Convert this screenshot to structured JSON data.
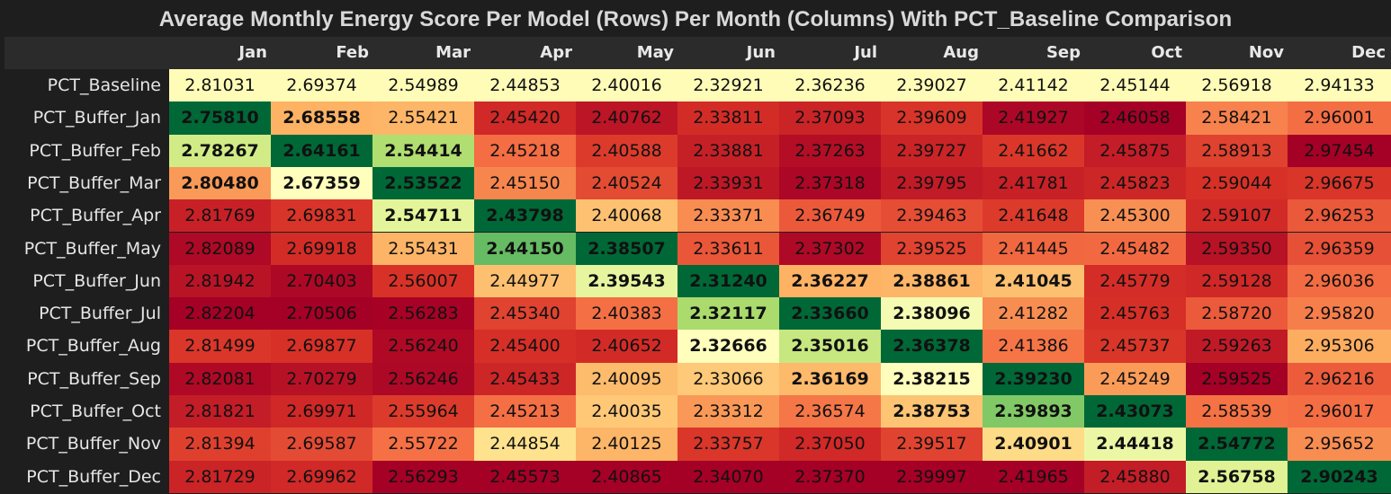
{
  "chart_data": {
    "type": "heatmap",
    "title": "Average Monthly Energy Score Per Model (Rows) Per Month (Columns) With PCT_Baseline Comparison",
    "columns": [
      "Jan",
      "Feb",
      "Mar",
      "Apr",
      "May",
      "Jun",
      "Jul",
      "Aug",
      "Sep",
      "Oct",
      "Nov",
      "Dec"
    ],
    "rows": [
      "PCT_Baseline",
      "PCT_Buffer_Jan",
      "PCT_Buffer_Feb",
      "PCT_Buffer_Mar",
      "PCT_Buffer_Apr",
      "PCT_Buffer_May",
      "PCT_Buffer_Jun",
      "PCT_Buffer_Jul",
      "PCT_Buffer_Aug",
      "PCT_Buffer_Sep",
      "PCT_Buffer_Oct",
      "PCT_Buffer_Nov",
      "PCT_Buffer_Dec"
    ],
    "values": [
      [
        "2.81031",
        "2.69374",
        "2.54989",
        "2.44853",
        "2.40016",
        "2.32921",
        "2.36236",
        "2.39027",
        "2.41142",
        "2.45144",
        "2.56918",
        "2.94133"
      ],
      [
        "2.75810",
        "2.68558",
        "2.55421",
        "2.45420",
        "2.40762",
        "2.33811",
        "2.37093",
        "2.39609",
        "2.41927",
        "2.46058",
        "2.58421",
        "2.96001"
      ],
      [
        "2.78267",
        "2.64161",
        "2.54414",
        "2.45218",
        "2.40588",
        "2.33881",
        "2.37263",
        "2.39727",
        "2.41662",
        "2.45875",
        "2.58913",
        "2.97454"
      ],
      [
        "2.80480",
        "2.67359",
        "2.53522",
        "2.45150",
        "2.40524",
        "2.33931",
        "2.37318",
        "2.39795",
        "2.41781",
        "2.45823",
        "2.59044",
        "2.96675"
      ],
      [
        "2.81769",
        "2.69831",
        "2.54711",
        "2.43798",
        "2.40068",
        "2.33371",
        "2.36749",
        "2.39463",
        "2.41648",
        "2.45300",
        "2.59107",
        "2.96253"
      ],
      [
        "2.82089",
        "2.69918",
        "2.55431",
        "2.44150",
        "2.38507",
        "2.33611",
        "2.37302",
        "2.39525",
        "2.41445",
        "2.45482",
        "2.59350",
        "2.96359"
      ],
      [
        "2.81942",
        "2.70403",
        "2.56007",
        "2.44977",
        "2.39543",
        "2.31240",
        "2.36227",
        "2.38861",
        "2.41045",
        "2.45779",
        "2.59128",
        "2.96036"
      ],
      [
        "2.82204",
        "2.70506",
        "2.56283",
        "2.45340",
        "2.40383",
        "2.32117",
        "2.33660",
        "2.38096",
        "2.41282",
        "2.45763",
        "2.58720",
        "2.95820"
      ],
      [
        "2.81499",
        "2.69877",
        "2.56240",
        "2.45400",
        "2.40652",
        "2.32666",
        "2.35016",
        "2.36378",
        "2.41386",
        "2.45737",
        "2.59263",
        "2.95306"
      ],
      [
        "2.82081",
        "2.70279",
        "2.56246",
        "2.45433",
        "2.40095",
        "2.33066",
        "2.36169",
        "2.38215",
        "2.39230",
        "2.45249",
        "2.59525",
        "2.96216"
      ],
      [
        "2.81821",
        "2.69971",
        "2.55964",
        "2.45213",
        "2.40035",
        "2.33312",
        "2.36574",
        "2.38753",
        "2.39893",
        "2.43073",
        "2.58539",
        "2.96017"
      ],
      [
        "2.81394",
        "2.69587",
        "2.55722",
        "2.44854",
        "2.40125",
        "2.33757",
        "2.37050",
        "2.39517",
        "2.40901",
        "2.44418",
        "2.54772",
        "2.95652"
      ],
      [
        "2.81729",
        "2.69962",
        "2.56293",
        "2.45573",
        "2.40865",
        "2.34070",
        "2.37370",
        "2.39997",
        "2.41965",
        "2.45880",
        "2.56758",
        "2.90243"
      ]
    ],
    "bold": [
      [],
      [
        0,
        1
      ],
      [
        0,
        1,
        2
      ],
      [
        0,
        1,
        2
      ],
      [
        2,
        3
      ],
      [
        3,
        4
      ],
      [
        4,
        5,
        6,
        7,
        8
      ],
      [
        5,
        6,
        7
      ],
      [
        5,
        6,
        7
      ],
      [
        6,
        7,
        8
      ],
      [
        7,
        8,
        9
      ],
      [
        8,
        9,
        10
      ],
      [
        10,
        11
      ]
    ],
    "colormap": "RdYlGn_r",
    "baseline_row_color": "#fffcb8",
    "colors": {
      "background": "#1e1e1e",
      "header_bg": "#2b2b2b"
    }
  }
}
